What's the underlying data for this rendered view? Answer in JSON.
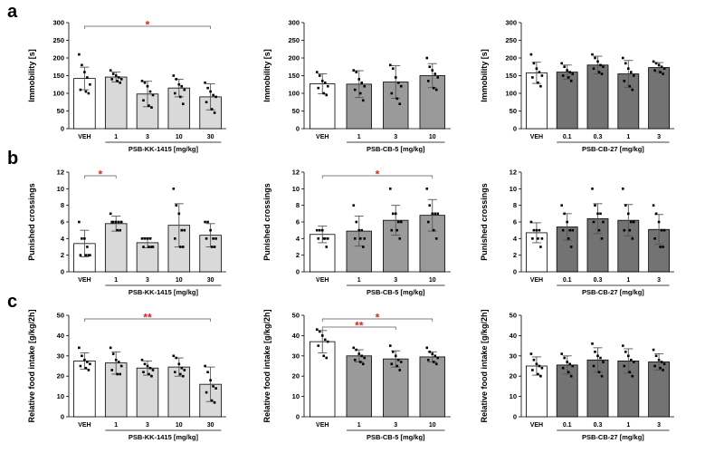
{
  "rows": [
    {
      "label": "a",
      "ylabel": "Immobility [s]",
      "ylim": [
        0,
        300
      ],
      "yticks": [
        0,
        50,
        100,
        150,
        200,
        250,
        300
      ],
      "charts": [
        {
          "type": "bar",
          "xlabel": "PSB-KK-1415 [mg/kg]",
          "categories": [
            "VEH",
            "1",
            "3",
            "10",
            "30"
          ],
          "values": [
            142,
            146,
            98,
            115,
            90
          ],
          "errors": [
            32,
            14,
            36,
            25,
            37
          ],
          "fill": [
            "#ffffff",
            "#d9d9d9",
            "#d9d9d9",
            "#d9d9d9",
            "#d9d9d9"
          ],
          "points": [
            [
              210,
              180,
              160,
              145,
              125,
              110,
              105,
              100
            ],
            [
              165,
              155,
              150,
              145,
              140,
              140,
              135,
              130
            ],
            [
              135,
              130,
              120,
              105,
              95,
              80,
              65,
              60
            ],
            [
              150,
              140,
              125,
              120,
              110,
              100,
              90,
              70
            ],
            [
              130,
              115,
              105,
              95,
              90,
              75,
              55,
              45
            ]
          ],
          "significance": [
            {
              "from": 0,
              "to": 4,
              "label": "*"
            }
          ]
        },
        {
          "type": "bar",
          "xlabel": "PSB-CB-5 [mg/kg]",
          "categories": [
            "VEH",
            "1",
            "3",
            "10"
          ],
          "values": [
            127,
            126,
            132,
            150
          ],
          "errors": [
            28,
            38,
            46,
            34
          ],
          "fill": [
            "#ffffff",
            "#9a9a9a",
            "#9a9a9a",
            "#9a9a9a"
          ],
          "points": [
            [
              160,
              150,
              135,
              130,
              120,
              115,
              100,
              95
            ],
            [
              165,
              160,
              140,
              130,
              120,
              110,
              100,
              80
            ],
            [
              180,
              170,
              145,
              130,
              120,
              100,
              85,
              70
            ],
            [
              200,
              175,
              165,
              155,
              145,
              135,
              115,
              110
            ]
          ],
          "significance": []
        },
        {
          "type": "bar",
          "xlabel": "PSB-CB-27 [mg/kg]",
          "categories": [
            "VEH",
            "0.1",
            "0.3",
            "1",
            "3"
          ],
          "values": [
            158,
            160,
            180,
            155,
            173
          ],
          "errors": [
            30,
            20,
            25,
            38,
            14
          ],
          "fill": [
            "#ffffff",
            "#737373",
            "#737373",
            "#737373",
            "#737373"
          ],
          "points": [
            [
              210,
              185,
              170,
              160,
              150,
              145,
              130,
              120
            ],
            [
              185,
              175,
              165,
              160,
              155,
              150,
              145,
              135
            ],
            [
              210,
              200,
              190,
              180,
              175,
              170,
              160,
              155
            ],
            [
              200,
              185,
              170,
              160,
              150,
              135,
              120,
              110
            ],
            [
              190,
              185,
              180,
              175,
              170,
              165,
              160,
              155
            ]
          ],
          "significance": []
        }
      ]
    },
    {
      "label": "b",
      "ylabel": "Punished crossings",
      "ylim": [
        0,
        12
      ],
      "yticks": [
        0,
        2,
        4,
        6,
        8,
        10,
        12
      ],
      "charts": [
        {
          "type": "bar",
          "xlabel": "PSB-KK-1415 [mg/kg]",
          "categories": [
            "VEH",
            "1",
            "3",
            "10",
            "30"
          ],
          "values": [
            3.4,
            5.8,
            3.5,
            5.6,
            4.4
          ],
          "errors": [
            1.6,
            0.9,
            0.6,
            2.6,
            1.4
          ],
          "fill": [
            "#ffffff",
            "#d9d9d9",
            "#d9d9d9",
            "#d9d9d9",
            "#d9d9d9"
          ],
          "points": [
            [
              6,
              4,
              4,
              3,
              2,
              2,
              2,
              2
            ],
            [
              7,
              6,
              6,
              6,
              6,
              6,
              5,
              5
            ],
            [
              4,
              4,
              4,
              4,
              3,
              3,
              3,
              3
            ],
            [
              10,
              8,
              7,
              5,
              5,
              4,
              3,
              3
            ],
            [
              6,
              6,
              5,
              4,
              4,
              4,
              3,
              3
            ]
          ],
          "significance": [
            {
              "from": 0,
              "to": 1,
              "label": "*"
            }
          ]
        },
        {
          "type": "bar",
          "xlabel": "PSB-CB-5 [mg/kg]",
          "categories": [
            "VEH",
            "1",
            "3",
            "10"
          ],
          "values": [
            4.5,
            4.9,
            6.2,
            6.8
          ],
          "errors": [
            1.0,
            1.8,
            1.8,
            1.9
          ],
          "fill": [
            "#ffffff",
            "#9a9a9a",
            "#9a9a9a",
            "#9a9a9a"
          ],
          "points": [
            [
              5,
              5,
              5,
              4,
              4,
              4,
              4,
              3
            ],
            [
              8,
              6,
              5,
              5,
              4,
              4,
              4,
              3
            ],
            [
              10,
              7,
              7,
              6,
              6,
              5,
              5,
              4
            ],
            [
              10,
              8,
              7,
              7,
              7,
              6,
              5,
              4
            ]
          ],
          "significance": [
            {
              "from": 0,
              "to": 3,
              "label": "*"
            }
          ]
        },
        {
          "type": "bar",
          "xlabel": "PSB-CB-27 [mg/kg]",
          "categories": [
            "VEH",
            "0.1",
            "0.3",
            "1",
            "3"
          ],
          "values": [
            4.7,
            5.4,
            6.4,
            6.2,
            5.1
          ],
          "errors": [
            1.2,
            1.6,
            1.8,
            1.9,
            1.8
          ],
          "fill": [
            "#ffffff",
            "#737373",
            "#737373",
            "#737373",
            "#737373"
          ],
          "points": [
            [
              6,
              5,
              5,
              5,
              4,
              4,
              4,
              3
            ],
            [
              8,
              7,
              6,
              5,
              5,
              5,
              4,
              3
            ],
            [
              10,
              8,
              7,
              7,
              6,
              6,
              5,
              4
            ],
            [
              10,
              8,
              7,
              6,
              6,
              5,
              5,
              4
            ],
            [
              8,
              7,
              6,
              5,
              5,
              4,
              3,
              3
            ]
          ],
          "significance": []
        }
      ]
    },
    {
      "label": "c",
      "ylabel": "Relative food intake [g/kg/2h]",
      "ylim": [
        0,
        50
      ],
      "yticks": [
        0,
        10,
        20,
        30,
        40,
        50
      ],
      "charts": [
        {
          "type": "bar",
          "xlabel": "PSB-KK-1415 [mg/kg]",
          "categories": [
            "VEH",
            "1",
            "3",
            "10",
            "30"
          ],
          "values": [
            27.5,
            26.5,
            24,
            24.5,
            16
          ],
          "errors": [
            4,
            5.5,
            3.5,
            4.5,
            8.5
          ],
          "fill": [
            "#ffffff",
            "#d9d9d9",
            "#d9d9d9",
            "#d9d9d9",
            "#d9d9d9"
          ],
          "points": [
            [
              34,
              30,
              28,
              27,
              26,
              25,
              24,
              23
            ],
            [
              34,
              31,
              28,
              27,
              25,
              23,
              21,
              21
            ],
            [
              28,
              26,
              25,
              24,
              23,
              22,
              21,
              20
            ],
            [
              30,
              29,
              26,
              24,
              23,
              22,
              21,
              20
            ],
            [
              25,
              22,
              18,
              15,
              14,
              12,
              8,
              7
            ]
          ],
          "significance": [
            {
              "from": 0,
              "to": 4,
              "label": "**"
            }
          ]
        },
        {
          "type": "bar",
          "xlabel": "PSB-CB-5 [mg/kg]",
          "categories": [
            "VEH",
            "1",
            "3",
            "10"
          ],
          "values": [
            37,
            30,
            28.5,
            29.5
          ],
          "errors": [
            5.5,
            3,
            4,
            2.5
          ],
          "fill": [
            "#ffffff",
            "#9a9a9a",
            "#9a9a9a",
            "#9a9a9a"
          ],
          "points": [
            [
              43,
              42,
              40,
              38,
              37,
              35,
              30,
              29
            ],
            [
              34,
              33,
              31,
              30,
              29,
              28,
              27,
              26
            ],
            [
              35,
              32,
              30,
              28,
              27,
              26,
              25,
              23
            ],
            [
              34,
              32,
              31,
              30,
              29,
              28,
              27,
              26
            ]
          ],
          "significance": [
            {
              "from": 0,
              "to": 3,
              "label": "*"
            },
            {
              "from": 0,
              "to": 2,
              "label": "**"
            }
          ]
        },
        {
          "type": "bar",
          "xlabel": "PSB-CB-27 [mg/kg]",
          "categories": [
            "VEH",
            "0.1",
            "0.3",
            "1",
            "3"
          ],
          "values": [
            25,
            25.5,
            28,
            27.5,
            27
          ],
          "errors": [
            4.5,
            4.5,
            6,
            6,
            4
          ],
          "fill": [
            "#ffffff",
            "#737373",
            "#737373",
            "#737373",
            "#737373"
          ],
          "points": [
            [
              31,
              28,
              26,
              25,
              24,
              23,
              21,
              20
            ],
            [
              31,
              29,
              27,
              26,
              25,
              24,
              22,
              20
            ],
            [
              36,
              32,
              30,
              29,
              27,
              25,
              22,
              20
            ],
            [
              35,
              32,
              30,
              28,
              27,
              25,
              22,
              20
            ],
            [
              33,
              30,
              28,
              27,
              26,
              25,
              24,
              23
            ]
          ],
          "significance": []
        }
      ]
    }
  ],
  "colors": {
    "significance": "#e0201b",
    "axis": "#000000",
    "bar_edge": "#000000",
    "error_bar": "#555555"
  }
}
